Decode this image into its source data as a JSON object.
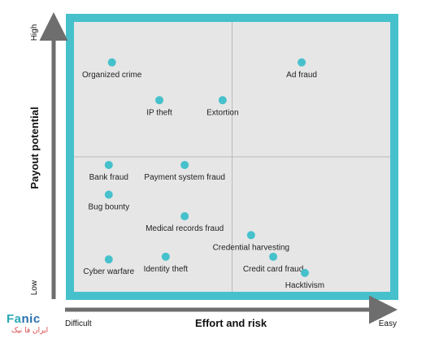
{
  "chart_data": {
    "type": "scatter",
    "title": "",
    "xlabel": "Effort and risk",
    "ylabel": "Payout potential",
    "x_ticks": {
      "low": "Difficult",
      "high": "Easy"
    },
    "y_ticks": {
      "low": "Low",
      "high": "High"
    },
    "xlim": [
      0,
      100
    ],
    "ylim": [
      0,
      100
    ],
    "quadrant_dividers": {
      "x": 50,
      "y": 50
    },
    "colors": {
      "frame": "#46c1cc",
      "panel": "#e6e6e6",
      "point": "#46c1cc",
      "axis": "#6e6e6e",
      "divider": "#b9b9b9"
    },
    "points": [
      {
        "label": "Organized crime",
        "x": 12,
        "y": 85
      },
      {
        "label": "Ad fraud",
        "x": 72,
        "y": 85
      },
      {
        "label": "IP theft",
        "x": 27,
        "y": 71
      },
      {
        "label": "Extortion",
        "x": 47,
        "y": 71
      },
      {
        "label": "Bank fraud",
        "x": 11,
        "y": 47
      },
      {
        "label": "Payment system fraud",
        "x": 35,
        "y": 47
      },
      {
        "label": "Bug bounty",
        "x": 11,
        "y": 36
      },
      {
        "label": "Medical records fraud",
        "x": 35,
        "y": 28
      },
      {
        "label": "Credential harvesting",
        "x": 56,
        "y": 21
      },
      {
        "label": "Credit card fraud",
        "x": 63,
        "y": 13
      },
      {
        "label": "Identity theft",
        "x": 29,
        "y": 13
      },
      {
        "label": "Cyber warfare",
        "x": 11,
        "y": 12
      },
      {
        "label": "Hacktivism",
        "x": 73,
        "y": 7
      }
    ]
  },
  "logo": {
    "main_a": "Fa",
    "main_b": "nic",
    "sub": "ایران فا نیک"
  }
}
